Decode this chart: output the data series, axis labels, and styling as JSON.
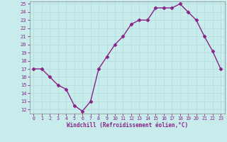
{
  "x": [
    0,
    1,
    2,
    3,
    4,
    5,
    6,
    7,
    8,
    9,
    10,
    11,
    12,
    13,
    14,
    15,
    16,
    17,
    18,
    19,
    20,
    21,
    22,
    23
  ],
  "y": [
    17,
    17,
    16,
    15,
    14.5,
    12.5,
    11.8,
    13,
    17,
    18.5,
    20,
    21,
    22.5,
    23,
    23,
    24.5,
    24.5,
    24.5,
    25,
    24,
    23,
    21,
    19.2,
    17
  ],
  "line_color": "#882288",
  "marker": "D",
  "marker_size": 2.5,
  "line_width": 1,
  "bg_color": "#c8ecec",
  "grid_color": "#aadddd",
  "xlabel": "Windchill (Refroidissement éolien,°C)",
  "xlabel_color": "#882288",
  "tick_color": "#882288",
  "ylim": [
    11.5,
    25.3
  ],
  "xlim": [
    -0.5,
    23.5
  ],
  "yticks": [
    12,
    13,
    14,
    15,
    16,
    17,
    18,
    19,
    20,
    21,
    22,
    23,
    24,
    25
  ],
  "xticks": [
    0,
    1,
    2,
    3,
    4,
    5,
    6,
    7,
    8,
    9,
    10,
    11,
    12,
    13,
    14,
    15,
    16,
    17,
    18,
    19,
    20,
    21,
    22,
    23
  ]
}
